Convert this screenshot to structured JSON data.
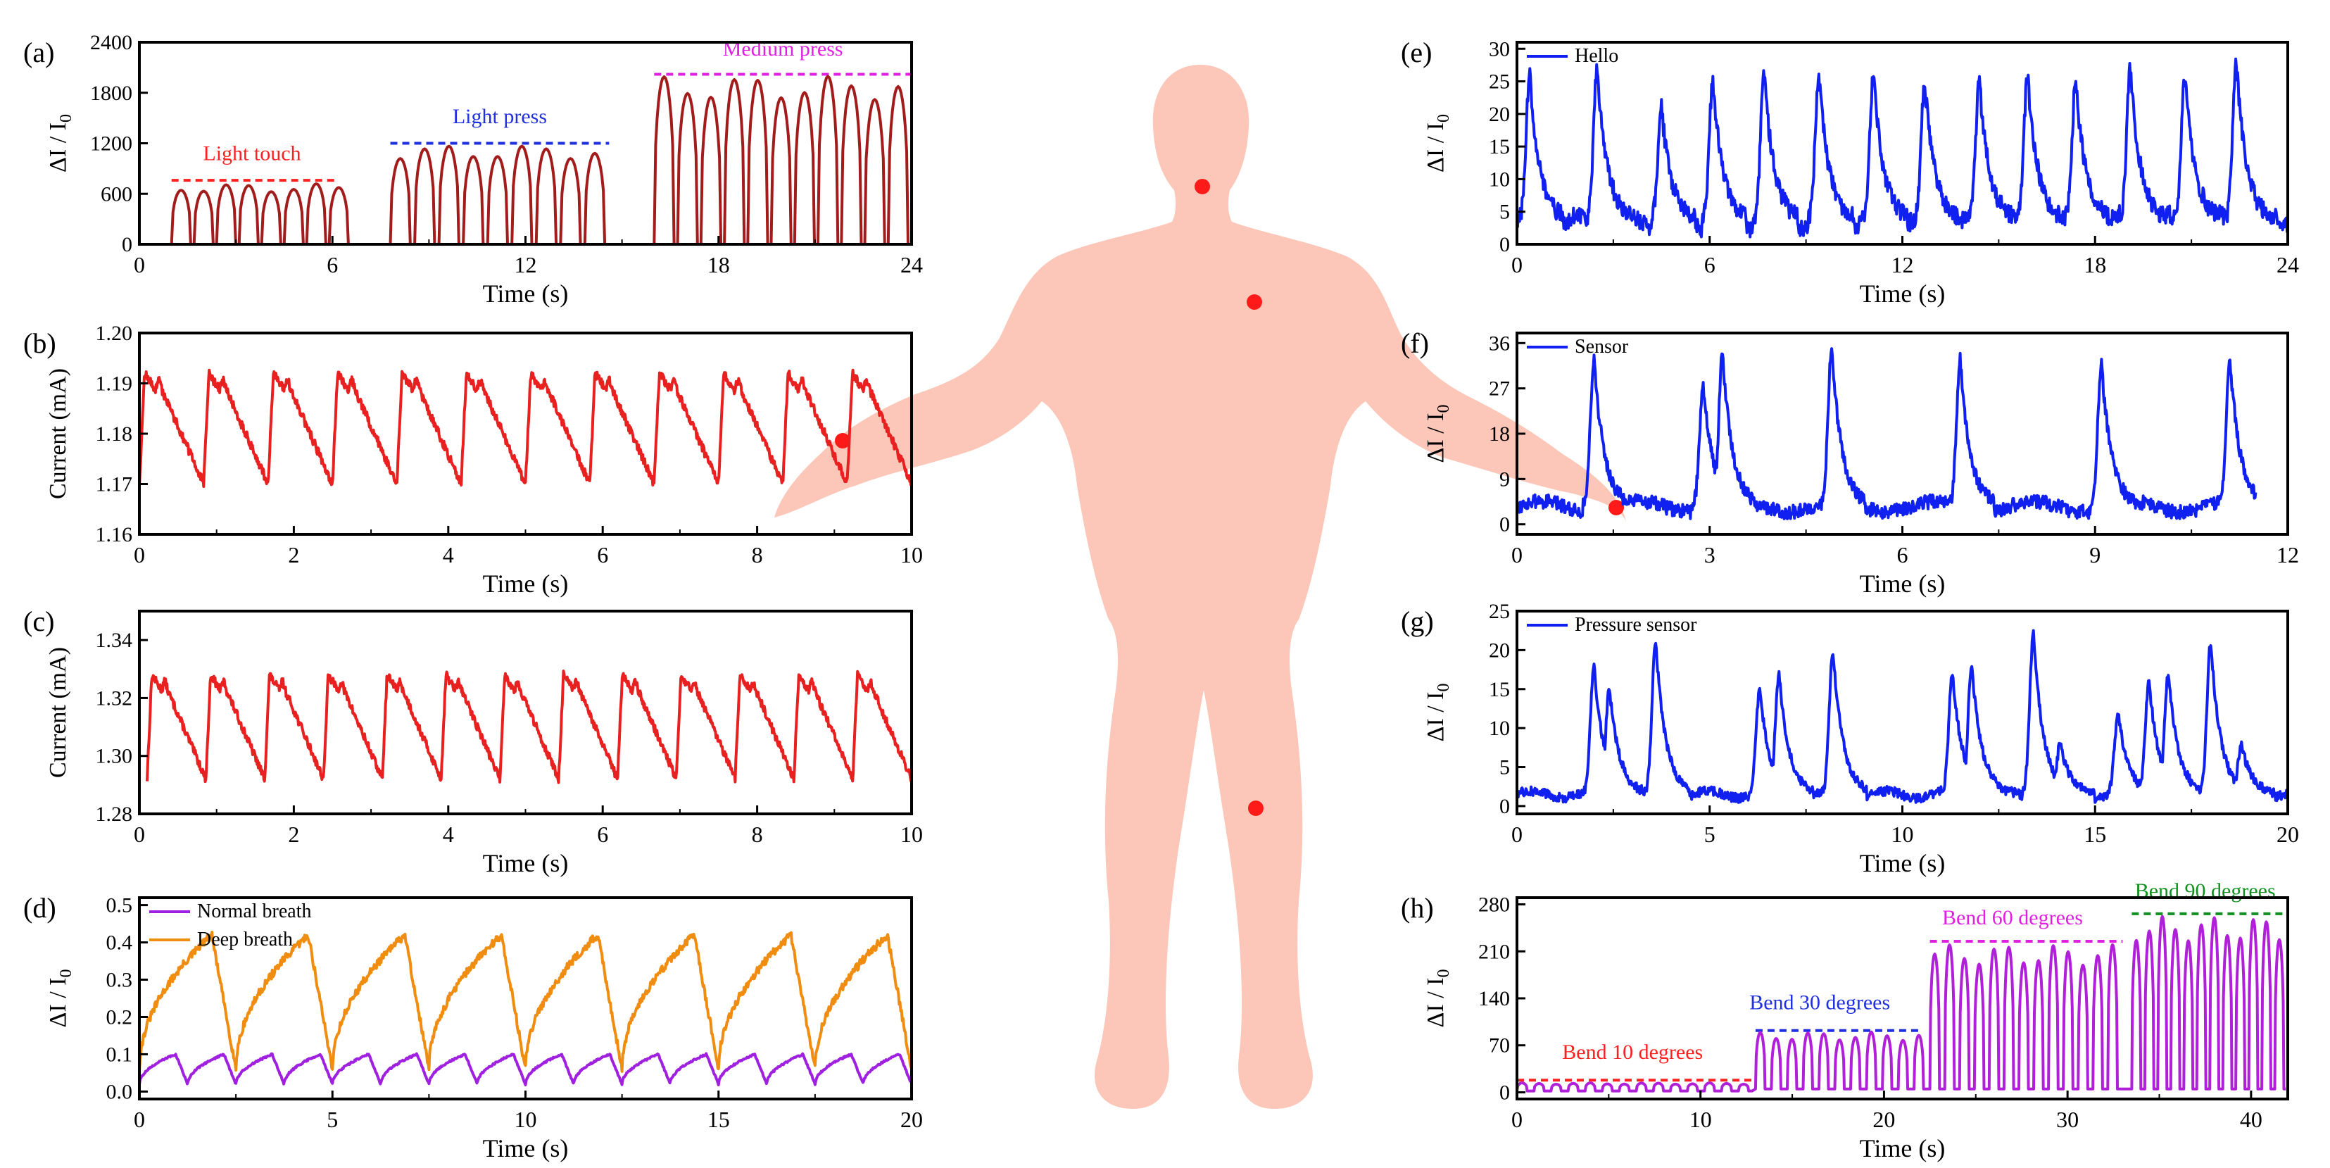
{
  "figure": {
    "body_color": "#fcc7b8",
    "dot_color": "#ff1a1a",
    "dots": [
      {
        "name": "neck-dot",
        "region": "neck"
      },
      {
        "name": "chest-dot",
        "region": "chest"
      },
      {
        "name": "wrist-dot",
        "region": "left-wrist"
      },
      {
        "name": "finger-dot",
        "region": "right-finger"
      },
      {
        "name": "knee-dot",
        "region": "knee"
      }
    ]
  },
  "chart_data": [
    {
      "id": "a",
      "panel_label": "(a)",
      "type": "line",
      "xlabel": "Time (s)",
      "ylabel": "ΔI / I0",
      "ylabel_main": "ΔI / I",
      "ylabel_sub": "0",
      "xlim": [
        0,
        24
      ],
      "ylim": [
        0,
        2400
      ],
      "xticks": [
        0,
        6,
        12,
        18,
        24
      ],
      "yticks": [
        0,
        600,
        1200,
        1800,
        2400
      ],
      "pattern": {
        "kind": "pulses",
        "color": "#a31c1c",
        "segments": [
          {
            "start": 1.0,
            "end": 6.6,
            "count": 8,
            "amp": 720,
            "base": 0,
            "duty": 0.85
          },
          {
            "start": 7.8,
            "end": 14.6,
            "count": 9,
            "amp": 1180,
            "base": 0,
            "duty": 0.82
          },
          {
            "start": 16.0,
            "end": 24.0,
            "count": 11,
            "amp": 2000,
            "base": 0,
            "duty": 0.85
          }
        ]
      },
      "annotations": [
        {
          "text": "Light touch",
          "x": 3.5,
          "y": 760,
          "text_y": 1000,
          "x0": 1.0,
          "x1": 6.2,
          "color": "#ff2020"
        },
        {
          "text": "Light press",
          "x": 11.2,
          "y": 1200,
          "text_y": 1440,
          "x0": 7.8,
          "x1": 14.6,
          "color": "#2030e0"
        },
        {
          "text": "Medium press",
          "x": 20.0,
          "y": 2020,
          "text_y": 2240,
          "x0": 16.0,
          "x1": 24.0,
          "color": "#e020e0"
        }
      ],
      "legend": []
    },
    {
      "id": "b",
      "panel_label": "(b)",
      "type": "line",
      "xlabel": "Time (s)",
      "ylabel": "Current (mA)",
      "ylabel_main": "Current (mA)",
      "ylabel_sub": "",
      "xlim": [
        0,
        10
      ],
      "ylim": [
        1.16,
        1.2
      ],
      "xticks": [
        0,
        2,
        4,
        6,
        8,
        10
      ],
      "yticks": [
        1.16,
        1.17,
        1.18,
        1.19,
        1.2
      ],
      "ytick_labels": [
        "1.16",
        "1.17",
        "1.18",
        "1.19",
        "1.20"
      ],
      "pattern": {
        "kind": "pulse-wave",
        "color": "#e82020",
        "beats": 12,
        "start": 0.0,
        "end": 10.0,
        "high": 1.192,
        "low": 1.17
      },
      "annotations": [],
      "legend": []
    },
    {
      "id": "c",
      "panel_label": "(c)",
      "type": "line",
      "xlabel": "Time (s)",
      "ylabel": "Current (mA)",
      "ylabel_main": "Current (mA)",
      "ylabel_sub": "",
      "xlim": [
        0,
        10
      ],
      "ylim": [
        1.28,
        1.35
      ],
      "xticks": [
        0,
        2,
        4,
        6,
        8,
        10
      ],
      "yticks": [
        1.28,
        1.3,
        1.32,
        1.34
      ],
      "ytick_labels": [
        "1.28",
        "1.30",
        "1.32",
        "1.34"
      ],
      "pattern": {
        "kind": "pulse-wave",
        "color": "#e82020",
        "beats": 13,
        "start": 0.1,
        "end": 10.0,
        "high": 1.328,
        "low": 1.292
      },
      "annotations": [],
      "legend": []
    },
    {
      "id": "d",
      "panel_label": "(d)",
      "type": "line",
      "xlabel": "Time (s)",
      "ylabel": "ΔI / I0",
      "ylabel_main": "ΔI / I",
      "ylabel_sub": "0",
      "xlim": [
        0,
        20
      ],
      "ylim": [
        -0.02,
        0.52
      ],
      "xticks": [
        0,
        5,
        10,
        15,
        20
      ],
      "yticks": [
        0.0,
        0.1,
        0.2,
        0.3,
        0.4,
        0.5
      ],
      "ytick_labels": [
        "0.0",
        "0.1",
        "0.2",
        "0.3",
        "0.4",
        "0.5"
      ],
      "pattern": {
        "kind": "breath",
        "series": [
          {
            "name": "Normal breath",
            "color": "#a020e0",
            "cycles": 16,
            "high": 0.1,
            "low": 0.02
          },
          {
            "name": "Deep breath",
            "color": "#f08c10",
            "cycles": 8,
            "high": 0.42,
            "low": 0.06
          }
        ]
      },
      "annotations": [],
      "legend": [
        {
          "name": "Normal breath",
          "color": "#a020e0"
        },
        {
          "name": "Deep breath",
          "color": "#f08c10"
        }
      ]
    },
    {
      "id": "e",
      "panel_label": "(e)",
      "type": "line",
      "xlabel": "Time (s)",
      "ylabel": "ΔI / I0",
      "ylabel_main": "ΔI / I",
      "ylabel_sub": "0",
      "xlim": [
        0,
        24
      ],
      "ylim": [
        0,
        31
      ],
      "xticks": [
        0,
        6,
        12,
        18,
        24
      ],
      "yticks": [
        0,
        5,
        10,
        15,
        20,
        25,
        30
      ],
      "pattern": {
        "kind": "speech",
        "color": "#1020f0",
        "peaks": [
          [
            0.4,
            26
          ],
          [
            2.5,
            27
          ],
          [
            4.5,
            21
          ],
          [
            6.1,
            25
          ],
          [
            7.7,
            26
          ],
          [
            9.4,
            26
          ],
          [
            11.1,
            26
          ],
          [
            12.7,
            25
          ],
          [
            14.4,
            25
          ],
          [
            15.9,
            26
          ],
          [
            17.4,
            25
          ],
          [
            19.1,
            27
          ],
          [
            20.8,
            26
          ],
          [
            22.4,
            28
          ]
        ],
        "base": 3.5
      },
      "annotations": [],
      "legend": [
        {
          "name": "Hello",
          "color": "#1020f0"
        }
      ]
    },
    {
      "id": "f",
      "panel_label": "(f)",
      "type": "line",
      "xlabel": "Time (s)",
      "ylabel": "ΔI / I0",
      "ylabel_main": "ΔI / I",
      "ylabel_sub": "0",
      "xlim": [
        0,
        12
      ],
      "ylim": [
        -2,
        38
      ],
      "xticks": [
        0,
        3,
        6,
        9,
        12
      ],
      "yticks": [
        0,
        9,
        18,
        27,
        36
      ],
      "pattern": {
        "kind": "speech",
        "color": "#1020f0",
        "peaks": [
          [
            1.2,
            33
          ],
          [
            2.9,
            28
          ],
          [
            3.2,
            34
          ],
          [
            4.9,
            35
          ],
          [
            6.9,
            33
          ],
          [
            9.1,
            32
          ],
          [
            11.1,
            33
          ]
        ],
        "base": 3.5,
        "x_end": 11.5
      },
      "annotations": [],
      "legend": [
        {
          "name": "Sensor",
          "color": "#1020f0"
        }
      ]
    },
    {
      "id": "g",
      "panel_label": "(g)",
      "type": "line",
      "xlabel": "Time (s)",
      "ylabel": "ΔI / I0",
      "ylabel_main": "ΔI / I",
      "ylabel_sub": "0",
      "xlim": [
        0,
        20
      ],
      "ylim": [
        -1,
        25
      ],
      "xticks": [
        0,
        5,
        10,
        15,
        20
      ],
      "yticks": [
        0,
        5,
        10,
        15,
        20,
        25
      ],
      "pattern": {
        "kind": "speech",
        "color": "#1020f0",
        "peaks": [
          [
            2.0,
            18
          ],
          [
            2.4,
            15
          ],
          [
            3.6,
            21
          ],
          [
            6.3,
            15
          ],
          [
            6.8,
            17
          ],
          [
            8.2,
            20
          ],
          [
            11.3,
            17
          ],
          [
            11.8,
            18
          ],
          [
            13.4,
            22
          ],
          [
            14.1,
            8
          ],
          [
            15.6,
            12
          ],
          [
            16.4,
            16
          ],
          [
            16.9,
            17
          ],
          [
            18.0,
            21
          ],
          [
            18.8,
            8
          ]
        ],
        "base": 1.5
      },
      "annotations": [],
      "legend": [
        {
          "name": "Pressure sensor",
          "color": "#1020f0"
        }
      ]
    },
    {
      "id": "h",
      "panel_label": "(h)",
      "type": "line",
      "xlabel": "Time (s)",
      "ylabel": "ΔI / I0",
      "ylabel_main": "ΔI / I",
      "ylabel_sub": "0",
      "xlim": [
        0,
        42
      ],
      "ylim": [
        -10,
        290
      ],
      "xticks": [
        0,
        10,
        20,
        30,
        40
      ],
      "yticks": [
        0,
        70,
        140,
        210,
        280
      ],
      "pattern": {
        "kind": "pulses",
        "color": "#b020d8",
        "segments": [
          {
            "start": 0.0,
            "end": 13.0,
            "count": 14,
            "amp": 14,
            "base": 2,
            "duty": 0.6
          },
          {
            "start": 13.0,
            "end": 22.5,
            "count": 11,
            "amp": 90,
            "base": 5,
            "duty": 0.6
          },
          {
            "start": 22.5,
            "end": 33.0,
            "count": 13,
            "amp": 220,
            "base": 5,
            "duty": 0.65
          },
          {
            "start": 33.5,
            "end": 42.0,
            "count": 12,
            "amp": 262,
            "base": 5,
            "duty": 0.7
          }
        ]
      },
      "annotations": [
        {
          "text": "Bend 10 degrees",
          "x": 6.3,
          "y": 18,
          "text_y": 50,
          "x0": 0.0,
          "x1": 13.0,
          "color": "#ff2020"
        },
        {
          "text": "Bend 30 degrees",
          "x": 16.5,
          "y": 92,
          "text_y": 124,
          "x0": 13.0,
          "x1": 22.0,
          "color": "#2030e0"
        },
        {
          "text": "Bend 60 degrees",
          "x": 27.0,
          "y": 225,
          "text_y": 250,
          "x0": 22.5,
          "x1": 33.0,
          "color": "#e020e0"
        },
        {
          "text": "Bend 90 degrees",
          "x": 37.5,
          "y": 266,
          "text_y": 290,
          "x0": 33.5,
          "x1": 42.0,
          "color": "#109020"
        }
      ],
      "legend": []
    }
  ]
}
